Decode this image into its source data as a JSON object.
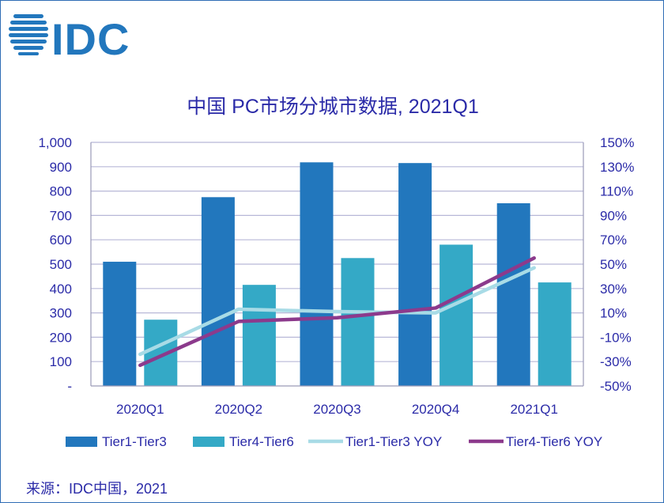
{
  "logo": {
    "text": "IDC"
  },
  "source": "来源：IDC中国，2021",
  "colors": {
    "tier1": "#2277bd",
    "tier4": "#34a9c6",
    "tier1_yoy": "#a8dbe6",
    "tier4_yoy": "#8c3a8c",
    "text": "#2b2ba8",
    "grid": "#b8b8d8",
    "axis": "#9a9ab8"
  },
  "chart_data": {
    "type": "bar",
    "title": "中国 PC市场分城市数据, 2021Q1",
    "categories": [
      "2020Q1",
      "2020Q2",
      "2020Q3",
      "2020Q4",
      "2021Q1"
    ],
    "series": [
      {
        "name": "Tier1-Tier3",
        "type": "bar",
        "axis": "left",
        "values": [
          510,
          775,
          918,
          915,
          750
        ]
      },
      {
        "name": "Tier4-Tier6",
        "type": "bar",
        "axis": "left",
        "values": [
          272,
          415,
          525,
          580,
          425
        ]
      },
      {
        "name": "Tier1-Tier3 YOY",
        "type": "line",
        "axis": "right",
        "values": [
          -24,
          13,
          11,
          10,
          47
        ]
      },
      {
        "name": "Tier4-Tier6 YOY",
        "type": "line",
        "axis": "right",
        "values": [
          -33,
          3,
          6,
          14,
          55
        ]
      }
    ],
    "left_axis": {
      "ylim": [
        0,
        1000
      ],
      "tick_labels": [
        "-",
        "100",
        "200",
        "300",
        "400",
        "500",
        "600",
        "700",
        "800",
        "900",
        "1,000"
      ]
    },
    "right_axis": {
      "ylim": [
        -50,
        150
      ],
      "tick_labels": [
        "-50%",
        "-30%",
        "-10%",
        "10%",
        "30%",
        "50%",
        "70%",
        "90%",
        "110%",
        "130%",
        "150%"
      ]
    },
    "grid": true,
    "legend": "bottom"
  }
}
